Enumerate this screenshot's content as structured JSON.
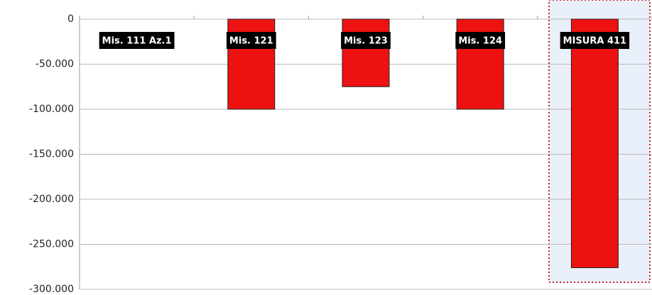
{
  "chart_data": {
    "type": "bar",
    "categories": [
      "Mis. 111 Az.1",
      "Mis. 121",
      "Mis. 123",
      "Mis. 124",
      "MISURA 411"
    ],
    "values": [
      0,
      -100000,
      -75000,
      -100000,
      -276000
    ],
    "color": "#ee1111",
    "ylim": [
      -300000,
      0
    ],
    "yticks": [
      0,
      {
        "value": -50000,
        "label": "-50.000"
      },
      {
        "value": -100000,
        "label": "-100.000"
      },
      {
        "value": -150000,
        "label": "-150.000"
      },
      {
        "value": -200000,
        "label": "-200.000"
      },
      {
        "value": -250000,
        "label": "-250.000"
      },
      {
        "value": -300000,
        "label": "-300.000"
      }
    ],
    "grid": true
  }
}
